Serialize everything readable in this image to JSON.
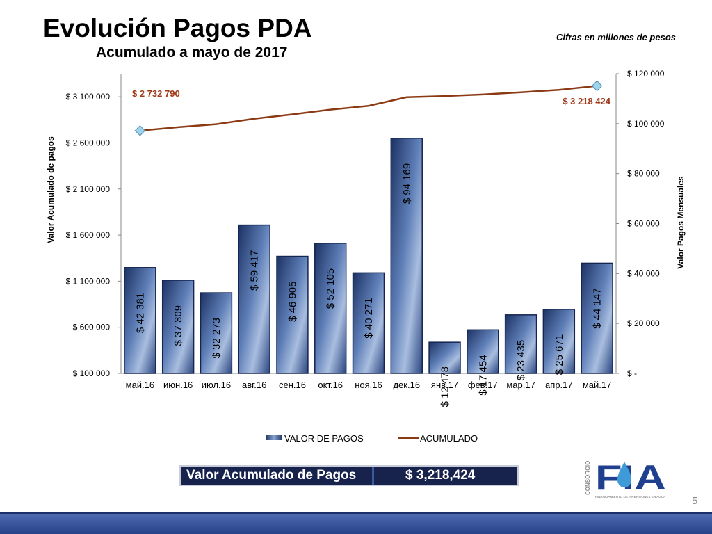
{
  "header": {
    "title": "Evolución Pagos PDA",
    "subtitle": "Acumulado a mayo de 2017",
    "note": "Cifras en millones de pesos"
  },
  "chart_data": {
    "type": "bar",
    "categories": [
      "май.16",
      "июн.16",
      "июл.16",
      "авг.16",
      "сен.16",
      "окт.16",
      "ноя.16",
      "дек.16",
      "янв.17",
      "фев.17",
      "мар.17",
      "апр.17",
      "май.17"
    ],
    "series": [
      {
        "name": "VALOR DE PAGOS",
        "type": "bar",
        "axis": "right",
        "values": [
          42381,
          37309,
          32273,
          59417,
          46905,
          52105,
          40271,
          94169,
          12478,
          17454,
          23435,
          25671,
          44147
        ],
        "labels": [
          "$ 42 381",
          "$ 37 309",
          "$ 32 273",
          "$ 59 417",
          "$ 46 905",
          "$ 52 105",
          "$ 40 271",
          "$ 94 169",
          "$ 12 478",
          "$ 17 454",
          "$ 23 435",
          "$ 25 671",
          "$ 44 147"
        ],
        "color": "#2d4a82"
      },
      {
        "name": "ACUMULADO",
        "type": "line",
        "axis": "left",
        "values": [
          2732790,
          2770099,
          2802372,
          2861789,
          2908694,
          2960799,
          3001070,
          3095239,
          3107717,
          3125171,
          3148606,
          3174277,
          3218424
        ],
        "color": "#8b3a14"
      }
    ],
    "annotations": {
      "first": "$ 2 732 790",
      "last": "$ 3 218 424"
    },
    "y_left": {
      "label": "Valor Acumulado de pagos",
      "range": [
        100000,
        3350000
      ],
      "ticks": [
        100000,
        600000,
        1100000,
        1600000,
        2100000,
        2600000,
        3100000
      ],
      "tick_labels": [
        "$ 100 000",
        "$ 600 000",
        "$ 1 100 000",
        "$ 1 600 000",
        "$ 2 100 000",
        "$ 2 600 000",
        "$ 3 100 000"
      ]
    },
    "y_right": {
      "label": "Valor Pagos Mensuales",
      "range": [
        0,
        120000
      ],
      "ticks": [
        0,
        20000,
        40000,
        60000,
        80000,
        100000,
        120000
      ],
      "tick_labels": [
        "$ -",
        "$ 20 000",
        "$ 40 000",
        "$ 60 000",
        "$ 80 000",
        "$ 100 000",
        "$ 120 000"
      ]
    },
    "legend": {
      "position": "bottom"
    }
  },
  "summary": {
    "label": "Valor Acumulado de Pagos",
    "value": "$    3,218,424"
  },
  "logo": {
    "vertical_text": "CONSORCIO",
    "letters": "FIA",
    "tagline": "FINANCIAMIENTO DE INVERSIONES EN AGUA"
  },
  "page_number": "5",
  "colors": {
    "bar": "#2d4a82",
    "line": "#8b3a14",
    "annotation": "#a0391a",
    "footer": "#3a56a0"
  }
}
